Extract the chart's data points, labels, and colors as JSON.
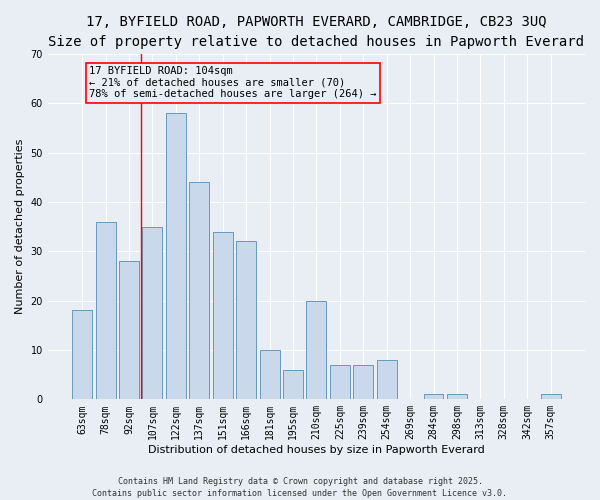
{
  "title_line1": "17, BYFIELD ROAD, PAPWORTH EVERARD, CAMBRIDGE, CB23 3UQ",
  "title_line2": "Size of property relative to detached houses in Papworth Everard",
  "categories": [
    "63sqm",
    "78sqm",
    "92sqm",
    "107sqm",
    "122sqm",
    "137sqm",
    "151sqm",
    "166sqm",
    "181sqm",
    "195sqm",
    "210sqm",
    "225sqm",
    "239sqm",
    "254sqm",
    "269sqm",
    "284sqm",
    "298sqm",
    "313sqm",
    "328sqm",
    "342sqm",
    "357sqm"
  ],
  "values": [
    18,
    36,
    28,
    35,
    58,
    44,
    34,
    32,
    10,
    6,
    20,
    7,
    7,
    8,
    0,
    1,
    1,
    0,
    0,
    0,
    1
  ],
  "bar_color": "#c9d9eb",
  "bar_edge_color": "#6699bb",
  "background_color": "#e8eef4",
  "ylabel": "Number of detached properties",
  "xlabel": "Distribution of detached houses by size in Papworth Everard",
  "ylim": [
    0,
    70
  ],
  "yticks": [
    0,
    10,
    20,
    30,
    40,
    50,
    60,
    70
  ],
  "annotation_text_line1": "17 BYFIELD ROAD: 104sqm",
  "annotation_text_line2": "← 21% of detached houses are smaller (70)",
  "annotation_text_line3": "78% of semi-detached houses are larger (264) →",
  "footer_line1": "Contains HM Land Registry data © Crown copyright and database right 2025.",
  "footer_line2": "Contains public sector information licensed under the Open Government Licence v3.0.",
  "grid_color": "#ffffff",
  "title_fontsize": 10,
  "subtitle_fontsize": 9,
  "axis_label_fontsize": 8,
  "tick_fontsize": 7,
  "annotation_fontsize": 7.5,
  "footer_fontsize": 6
}
